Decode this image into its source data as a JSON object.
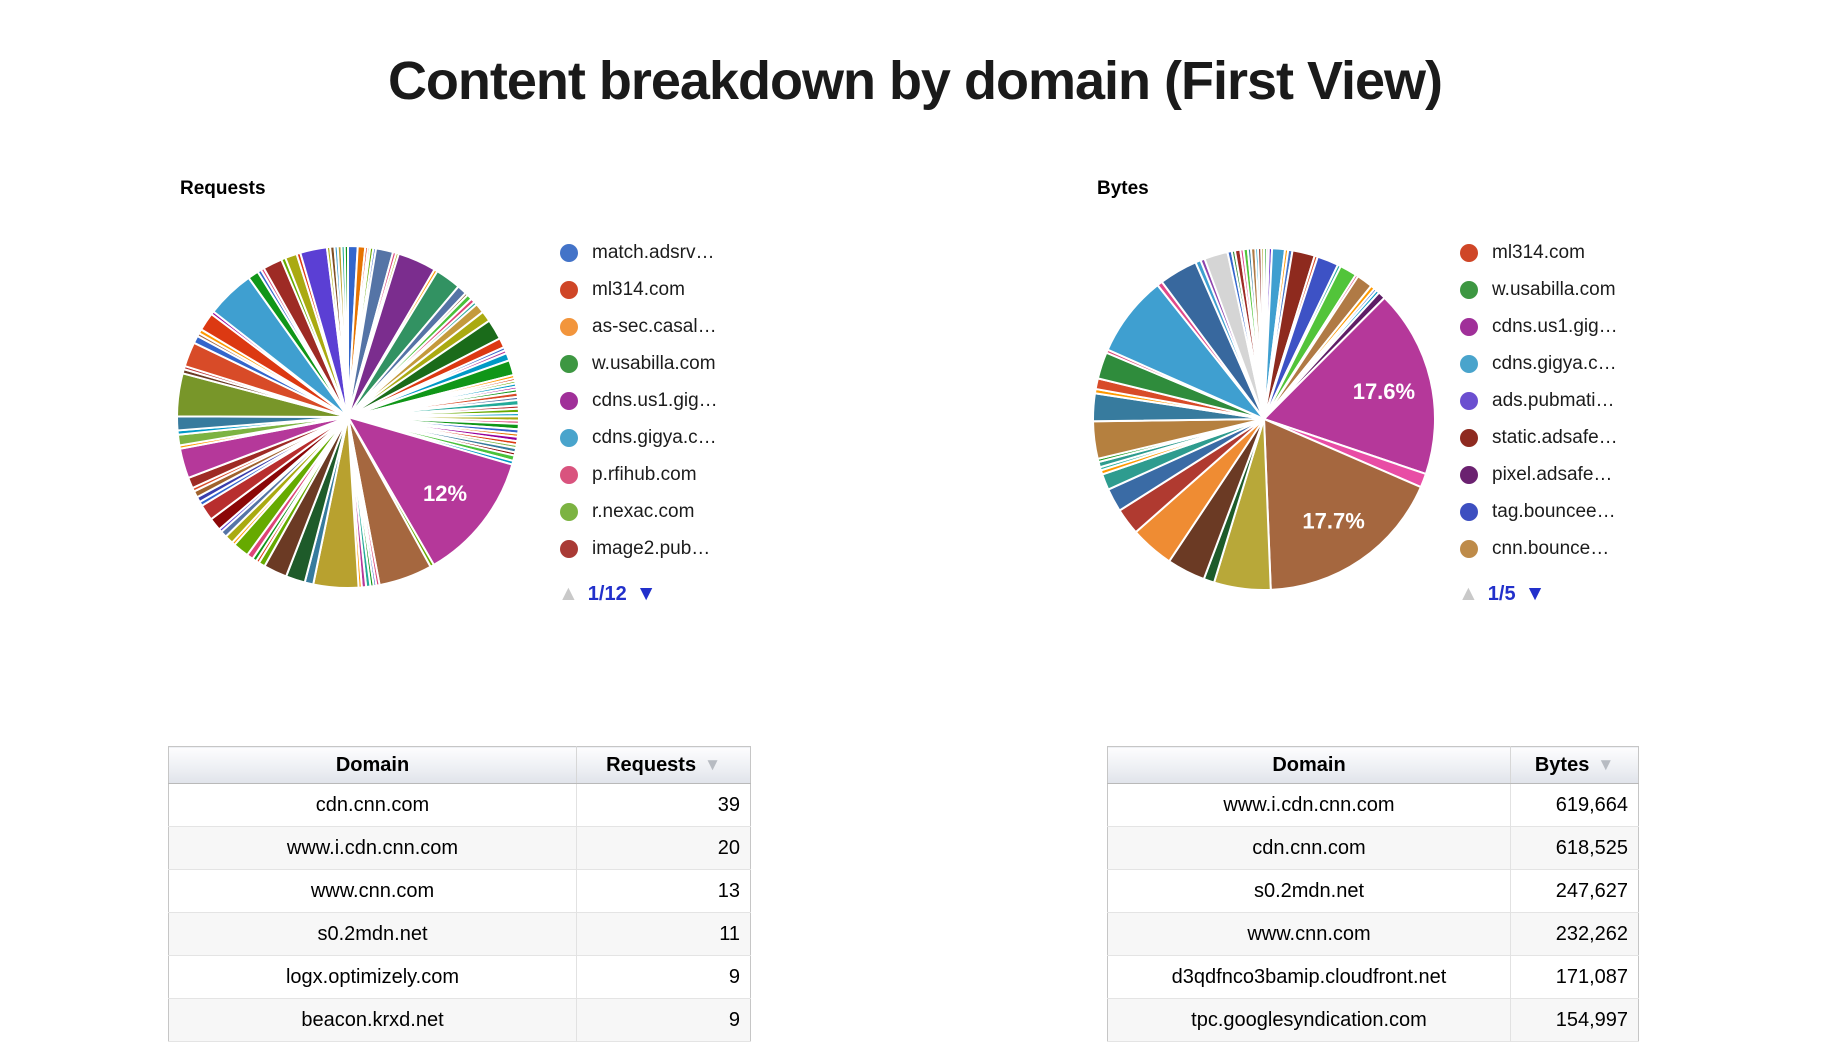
{
  "title": "Content breakdown by domain (First View)",
  "left_panel": {
    "section_label": "Requests",
    "legend": [
      {
        "label": "match.adsrv…",
        "color": "#4373C8"
      },
      {
        "label": "ml314.com",
        "color": "#CF4627"
      },
      {
        "label": "as-sec.casal…",
        "color": "#F2953C"
      },
      {
        "label": "w.usabilla.com",
        "color": "#3D9742"
      },
      {
        "label": "cdns.us1.gig…",
        "color": "#A03099"
      },
      {
        "label": "cdns.gigya.c…",
        "color": "#49A4CC"
      },
      {
        "label": "p.rfihub.com",
        "color": "#D9537E"
      },
      {
        "label": "r.nexac.com",
        "color": "#7CB342"
      },
      {
        "label": "image2.pub…",
        "color": "#A93A35"
      }
    ],
    "pager": {
      "label": "1/12",
      "up_icon": "▲",
      "down_icon": "▼"
    }
  },
  "right_panel": {
    "section_label": "Bytes",
    "legend": [
      {
        "label": "ml314.com",
        "color": "#CF4627"
      },
      {
        "label": "w.usabilla.com",
        "color": "#3D9742"
      },
      {
        "label": "cdns.us1.gig…",
        "color": "#A03099"
      },
      {
        "label": "cdns.gigya.c…",
        "color": "#49A4CC"
      },
      {
        "label": "ads.pubmati…",
        "color": "#6B4FD0"
      },
      {
        "label": "static.adsafe…",
        "color": "#8E2A20"
      },
      {
        "label": "pixel.adsafe…",
        "color": "#6B2170"
      },
      {
        "label": "tag.bouncee…",
        "color": "#3D4FC0"
      },
      {
        "label": "cnn.bounce…",
        "color": "#BE8B49"
      }
    ],
    "pager": {
      "label": "1/5",
      "up_icon": "▲",
      "down_icon": "▼"
    }
  },
  "chart_data": [
    {
      "type": "pie",
      "title": "Requests",
      "legend_position": "right",
      "labeled_slices": [
        {
          "label": "12%",
          "percent": 12.0,
          "color": "#B5389A"
        }
      ],
      "slices": [
        [
          0.9,
          "#3366CC"
        ],
        [
          0.7,
          "#E67300"
        ],
        [
          0.25,
          "#DC3912"
        ],
        [
          0.2,
          "#109618"
        ],
        [
          0.3,
          "#66AA00"
        ],
        [
          0.25,
          "#3366CC"
        ],
        [
          1.6,
          "#5574A6"
        ],
        [
          0.3,
          "#DD4477"
        ],
        [
          0.25,
          "#AAAA11"
        ],
        [
          3.6,
          "#7B2D8E"
        ],
        [
          0.3,
          "#FF9900"
        ],
        [
          2.4,
          "#329262"
        ],
        [
          0.9,
          "#5574A6"
        ],
        [
          0.25,
          "#7D4E24"
        ],
        [
          0.5,
          "#49C23A"
        ],
        [
          0.4,
          "#DD4477"
        ],
        [
          0.3,
          "#22AA99"
        ],
        [
          0.9,
          "#C49A3C"
        ],
        [
          1.0,
          "#AAAA11"
        ],
        [
          1.9,
          "#1A6B1A"
        ],
        [
          0.9,
          "#DC3912"
        ],
        [
          0.3,
          "#3366CC"
        ],
        [
          0.3,
          "#B5389A"
        ],
        [
          0.7,
          "#0099C6"
        ],
        [
          1.4,
          "#109618"
        ],
        [
          0.3,
          "#FF9900"
        ],
        [
          0.25,
          "#DC3912"
        ],
        [
          0.25,
          "#66AA00"
        ],
        [
          0.3,
          "#0099C6"
        ],
        [
          0.25,
          "#990099"
        ],
        [
          0.3,
          "#109618"
        ],
        [
          0.4,
          "#D84B28"
        ],
        [
          0.3,
          "#5574A6"
        ],
        [
          0.5,
          "#22AA99"
        ],
        [
          0.3,
          "#B82E2E"
        ],
        [
          0.4,
          "#66AA00"
        ],
        [
          0.3,
          "#0099C6"
        ],
        [
          0.4,
          "#AAAA11"
        ],
        [
          0.3,
          "#DD4477"
        ],
        [
          0.5,
          "#109618"
        ],
        [
          0.4,
          "#3366CC"
        ],
        [
          0.3,
          "#E67300"
        ],
        [
          0.4,
          "#990099"
        ],
        [
          0.35,
          "#DC3912"
        ],
        [
          0.3,
          "#7CB342"
        ],
        [
          0.4,
          "#377B9E"
        ],
        [
          0.3,
          "#8B0707"
        ],
        [
          0.5,
          "#49C23A"
        ],
        [
          0.35,
          "#0099C6"
        ],
        [
          12.0,
          "#B5389A",
          "12%"
        ],
        [
          0.35,
          "#66AA00"
        ],
        [
          5.0,
          "#A5673F"
        ],
        [
          0.3,
          "#DD4477"
        ],
        [
          0.25,
          "#3366CC"
        ],
        [
          0.3,
          "#109618"
        ],
        [
          0.4,
          "#22AA99"
        ],
        [
          0.4,
          "#B5389A"
        ],
        [
          0.3,
          "#FF9900"
        ],
        [
          4.2,
          "#B8A12F"
        ],
        [
          0.8,
          "#377B9E"
        ],
        [
          1.8,
          "#1E5B2A"
        ],
        [
          2.2,
          "#6B3A24"
        ],
        [
          0.6,
          "#66AA00"
        ],
        [
          0.3,
          "#DC3912"
        ],
        [
          0.4,
          "#109618"
        ],
        [
          0.6,
          "#DD4477"
        ],
        [
          1.5,
          "#66AA00"
        ],
        [
          0.3,
          "#FF9900"
        ],
        [
          0.8,
          "#AAAA11"
        ],
        [
          0.6,
          "#5574A6"
        ],
        [
          0.3,
          "#5B3FD4"
        ],
        [
          1.2,
          "#8B0707"
        ],
        [
          1.5,
          "#B82E2E"
        ],
        [
          0.4,
          "#3366CC"
        ],
        [
          0.5,
          "#3B3EAC"
        ],
        [
          0.6,
          "#A0622D"
        ],
        [
          0.35,
          "#D84B28"
        ],
        [
          1.0,
          "#9E2B25"
        ],
        [
          2.8,
          "#B5389A"
        ],
        [
          0.3,
          "#FF9900"
        ],
        [
          1.0,
          "#7CB342"
        ],
        [
          0.4,
          "#0099C6"
        ],
        [
          1.3,
          "#377B9E"
        ],
        [
          4.0,
          "#789629"
        ],
        [
          0.4,
          "#6B3A24"
        ],
        [
          0.3,
          "#B82E2E"
        ],
        [
          2.3,
          "#D84B28"
        ],
        [
          0.7,
          "#3366CC"
        ],
        [
          0.3,
          "#A5673F"
        ],
        [
          0.4,
          "#FF9900"
        ],
        [
          1.7,
          "#DC3912"
        ],
        [
          0.3,
          "#990099"
        ],
        [
          4.5,
          "#3F9FD0"
        ],
        [
          1.0,
          "#109618"
        ],
        [
          0.35,
          "#3366CC"
        ],
        [
          0.3,
          "#DD4477"
        ],
        [
          1.8,
          "#9E2B25"
        ],
        [
          0.4,
          "#66AA00"
        ],
        [
          1.1,
          "#AAAA11"
        ],
        [
          0.35,
          "#DC3912"
        ],
        [
          2.5,
          "#5B3FD4"
        ],
        [
          0.3,
          "#AAAA11"
        ],
        [
          0.4,
          "#7D4E24"
        ],
        [
          0.3,
          "#3F9FD0"
        ],
        [
          0.35,
          "#B8A12F"
        ],
        [
          0.3,
          "#22AA99"
        ],
        [
          0.3,
          "#109618"
        ]
      ]
    },
    {
      "type": "pie",
      "title": "Bytes",
      "legend_position": "right",
      "labeled_slices": [
        {
          "label": "17.6%",
          "percent": 17.6,
          "color": "#B5389A"
        },
        {
          "label": "17.7%",
          "percent": 17.7,
          "color": "#A5673F"
        }
      ],
      "slices": [
        [
          0.25,
          "#109618"
        ],
        [
          0.2,
          "#B5389A"
        ],
        [
          0.3,
          "#6633CC"
        ],
        [
          1.2,
          "#3F9FD0"
        ],
        [
          0.3,
          "#FF9900"
        ],
        [
          0.4,
          "#4373C8"
        ],
        [
          2.1,
          "#8E2A1E"
        ],
        [
          0.3,
          "#D84B28"
        ],
        [
          2.0,
          "#3D52C5"
        ],
        [
          0.3,
          "#22AA99"
        ],
        [
          1.6,
          "#52C43A"
        ],
        [
          0.25,
          "#DD4477"
        ],
        [
          1.5,
          "#B07A45"
        ],
        [
          0.4,
          "#FF9900"
        ],
        [
          0.25,
          "#3366CC"
        ],
        [
          0.3,
          "#0099C6"
        ],
        [
          0.7,
          "#5E1D66"
        ],
        [
          17.6,
          "#B5389A",
          "17.6%"
        ],
        [
          1.3,
          "#E84DA5"
        ],
        [
          17.7,
          "#A5673F",
          "17.7%"
        ],
        [
          5.3,
          "#B8A839"
        ],
        [
          1.0,
          "#1E5B2A"
        ],
        [
          3.6,
          "#6B3A24"
        ],
        [
          4.1,
          "#EF8C33"
        ],
        [
          2.5,
          "#B03A30"
        ],
        [
          2.2,
          "#3A6BA5"
        ],
        [
          1.5,
          "#2E9C8F"
        ],
        [
          0.4,
          "#FF9900"
        ],
        [
          0.3,
          "#22AA99"
        ],
        [
          0.5,
          "#2E9C8F"
        ],
        [
          0.3,
          "#109618"
        ],
        [
          3.5,
          "#B5803F"
        ],
        [
          2.6,
          "#377B9E"
        ],
        [
          0.4,
          "#FF9900"
        ],
        [
          1.0,
          "#D84B28"
        ],
        [
          2.5,
          "#2F8C3C"
        ],
        [
          0.3,
          "#DD4477"
        ],
        [
          7.6,
          "#3F9FD0"
        ],
        [
          0.5,
          "#E0498A"
        ],
        [
          3.6,
          "#38689E"
        ],
        [
          0.5,
          "#3F9FD0"
        ],
        [
          0.4,
          "#8E44AD"
        ],
        [
          2.2,
          "#D5D5D5"
        ],
        [
          0.4,
          "#3366CC"
        ],
        [
          0.3,
          "#2F8C3C"
        ],
        [
          0.5,
          "#9E2B25"
        ],
        [
          0.3,
          "#E0498A"
        ],
        [
          0.4,
          "#52C43A"
        ],
        [
          0.3,
          "#377B9E"
        ],
        [
          0.4,
          "#B07A45"
        ],
        [
          0.25,
          "#0099C6"
        ],
        [
          0.3,
          "#8E2A1E"
        ],
        [
          0.25,
          "#B8A839"
        ]
      ]
    }
  ],
  "tables": {
    "left": {
      "headers": [
        "Domain",
        "Requests"
      ],
      "sort_icon": "▼",
      "rows": [
        [
          "cdn.cnn.com",
          "39"
        ],
        [
          "www.i.cdn.cnn.com",
          "20"
        ],
        [
          "www.cnn.com",
          "13"
        ],
        [
          "s0.2mdn.net",
          "11"
        ],
        [
          "logx.optimizely.com",
          "9"
        ],
        [
          "beacon.krxd.net",
          "9"
        ]
      ]
    },
    "right": {
      "headers": [
        "Domain",
        "Bytes"
      ],
      "sort_icon": "▼",
      "rows": [
        [
          "www.i.cdn.cnn.com",
          "619,664"
        ],
        [
          "cdn.cnn.com",
          "618,525"
        ],
        [
          "s0.2mdn.net",
          "247,627"
        ],
        [
          "www.cnn.com",
          "232,262"
        ],
        [
          "d3qdfnco3bamip.cloudfront.net",
          "171,087"
        ],
        [
          "tpc.googlesyndication.com",
          "154,997"
        ]
      ]
    }
  }
}
